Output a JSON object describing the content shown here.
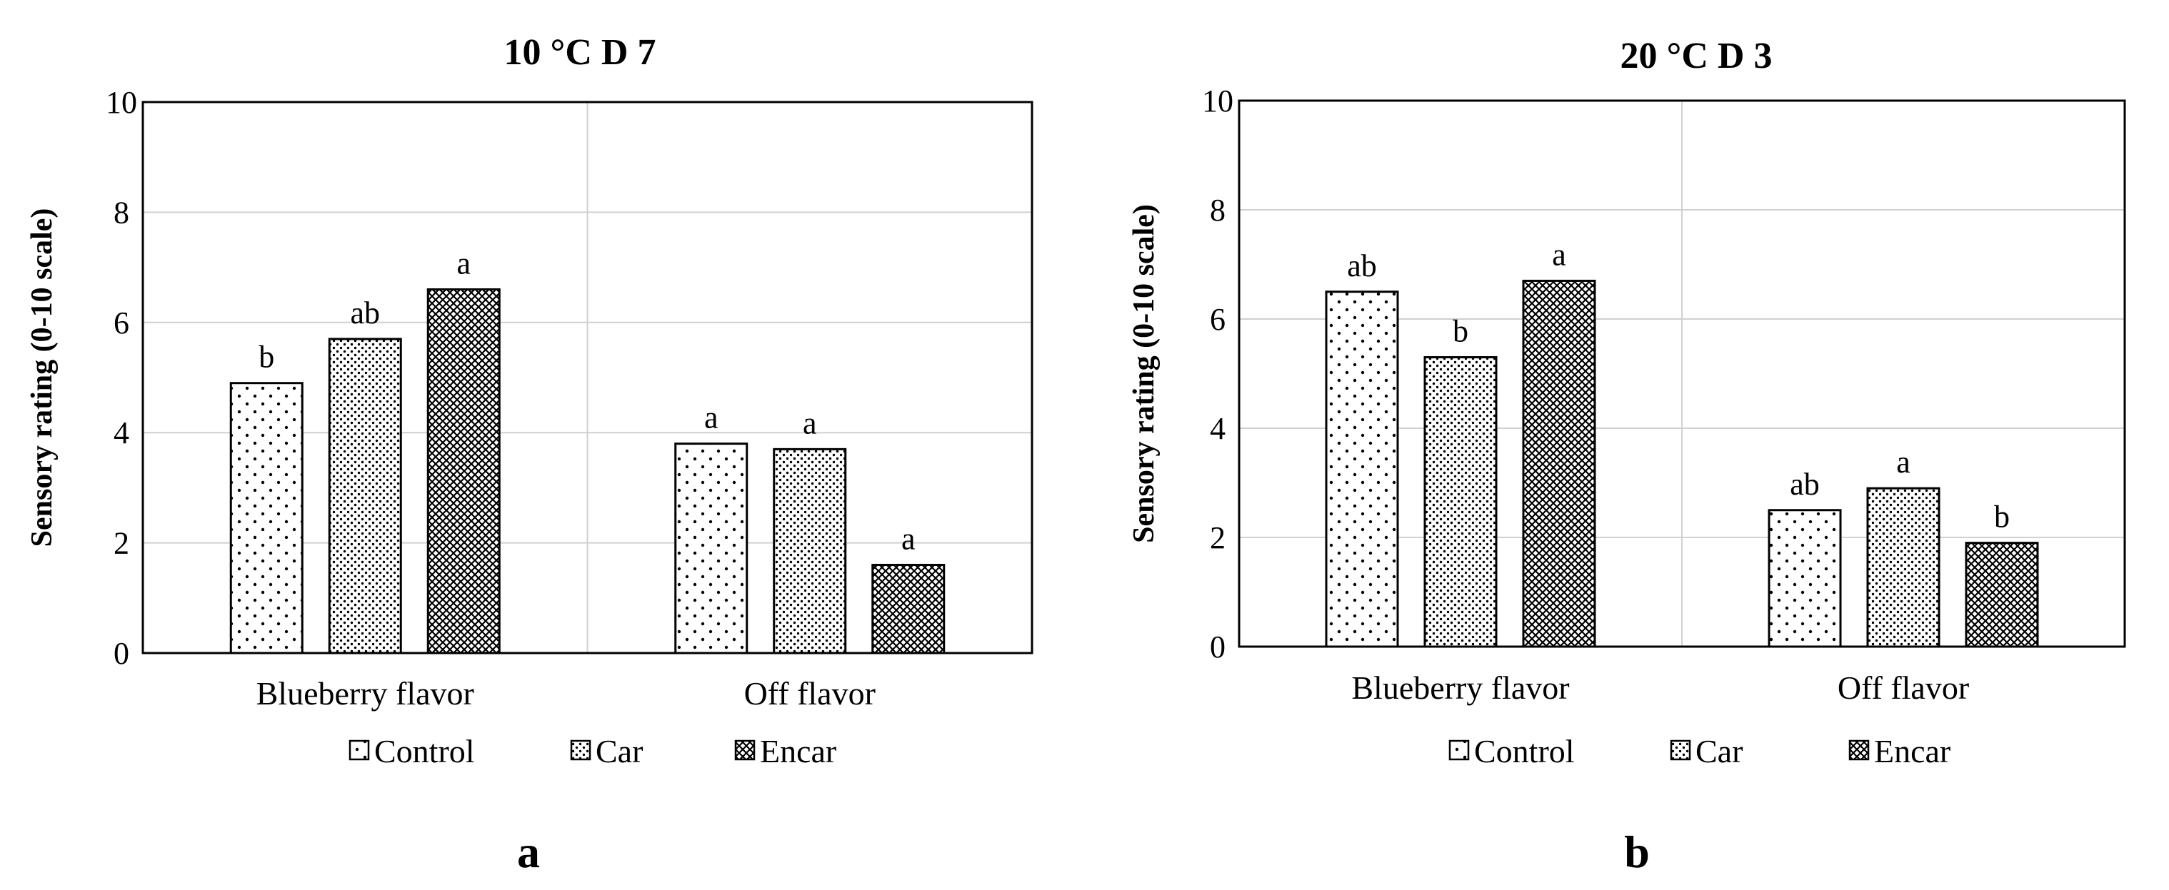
{
  "figure": {
    "panels": [
      {
        "panel_label": "a"
      },
      {
        "panel_label": "b"
      }
    ]
  },
  "legend_entries": [
    "Control",
    "Car",
    "Encar"
  ],
  "colors": {
    "bar_fill": "#ffffff",
    "bar_pattern": "#000000",
    "grid": "#d0d0d0",
    "axis": "#000000",
    "text": "#000000"
  },
  "chart_data": [
    {
      "type": "bar",
      "title": "10 °C  D 7",
      "xlabel": "",
      "ylabel": "Sensory rating (0-10 scale)",
      "ylim": [
        0,
        10
      ],
      "yticks": [
        "0",
        "2",
        "4",
        "6",
        "8",
        "10"
      ],
      "grid": true,
      "legend_position": "bottom",
      "categories": [
        "Blueberry flavor",
        "Off flavor"
      ],
      "series": [
        {
          "name": "Control",
          "values": [
            4.9,
            3.8
          ],
          "letters": [
            "b",
            "a"
          ]
        },
        {
          "name": "Car",
          "values": [
            5.7,
            3.7
          ],
          "letters": [
            "ab",
            "a"
          ]
        },
        {
          "name": "Encar",
          "values": [
            6.6,
            1.6
          ],
          "letters": [
            "a",
            "a"
          ]
        }
      ]
    },
    {
      "type": "bar",
      "title": "20 °C  D 3",
      "xlabel": "",
      "ylabel": "Sensory rating (0-10 scale)",
      "ylim": [
        0,
        10
      ],
      "yticks": [
        "0",
        "2",
        "4",
        "6",
        "8",
        "10"
      ],
      "grid": true,
      "legend_position": "bottom",
      "categories": [
        "Blueberry flavor",
        "Off flavor"
      ],
      "series": [
        {
          "name": "Control",
          "values": [
            6.5,
            2.5
          ],
          "letters": [
            "ab",
            "ab"
          ]
        },
        {
          "name": "Car",
          "values": [
            5.3,
            2.9
          ],
          "letters": [
            "b",
            "a"
          ]
        },
        {
          "name": "Encar",
          "values": [
            6.7,
            1.9
          ],
          "letters": [
            "a",
            "b"
          ]
        }
      ]
    }
  ]
}
